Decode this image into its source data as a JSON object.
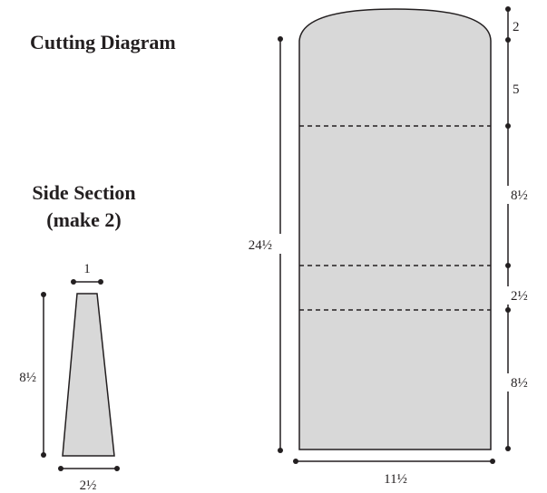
{
  "titles": {
    "cutting": "Cutting Diagram",
    "side_line1": "Side Section",
    "side_line2": "(make 2)"
  },
  "main_panel": {
    "height_label": "24½",
    "width_label": "11½",
    "segment_labels": [
      "2",
      "5",
      "8½",
      "2½",
      "8½"
    ]
  },
  "side_panel": {
    "top_width_label": "1",
    "height_label": "8½",
    "bottom_width_label": "2½"
  },
  "colors": {
    "fill": "#d8d8d8",
    "line": "#231f20"
  }
}
